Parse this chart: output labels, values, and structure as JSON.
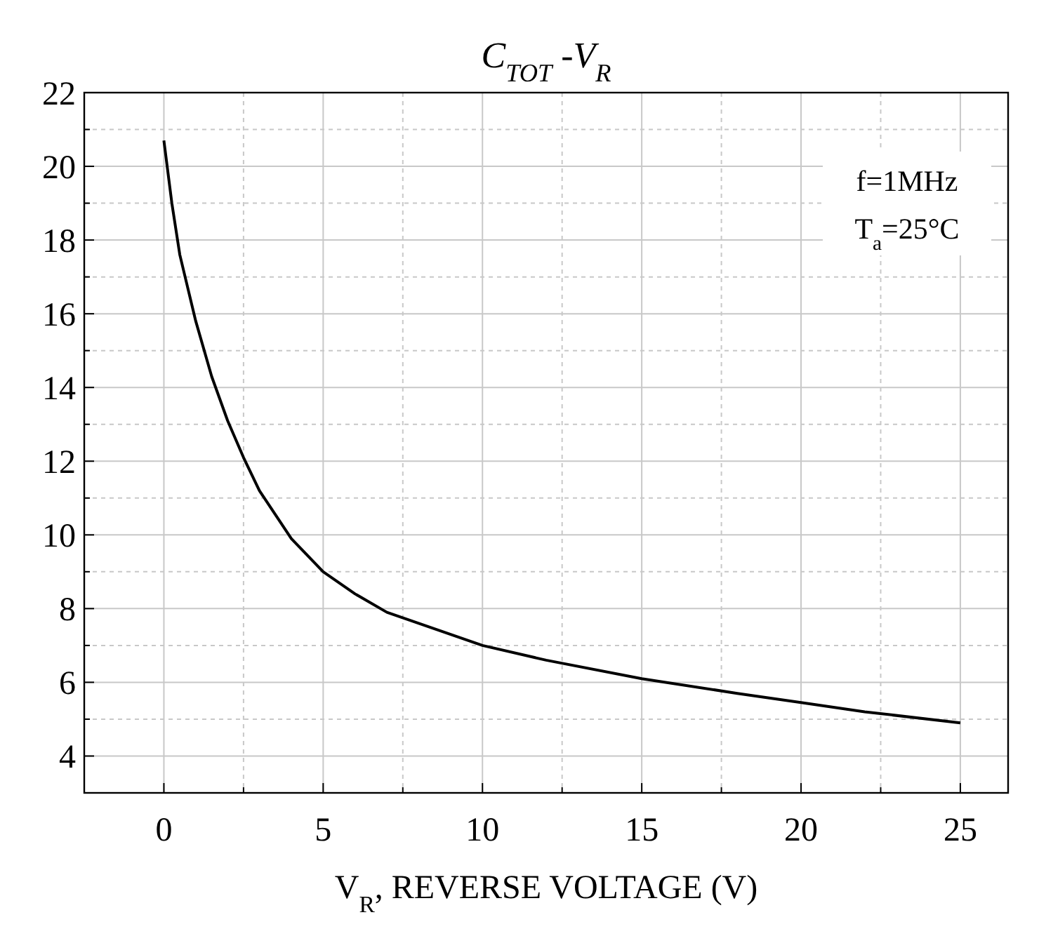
{
  "chart_data": {
    "type": "line",
    "title": "C$_{TOT}$ -V$_{R}$",
    "xlabel": "V$_{R}$, REVERSE VOLTAGE  (V)",
    "annotations": [
      "f=1MHz",
      "T$_{a}$=25°C"
    ],
    "x": [
      0,
      0.25,
      0.5,
      1,
      1.5,
      2,
      2.5,
      3,
      4,
      5,
      6,
      7,
      8,
      10,
      12,
      15,
      18,
      20,
      22,
      25
    ],
    "series": [
      {
        "color": "#000000",
        "values": [
          20.7,
          19,
          17.6,
          15.8,
          14.3,
          13.1,
          12.1,
          11.2,
          9.9,
          9.0,
          8.4,
          7.9,
          7.6,
          7.0,
          6.6,
          6.1,
          5.7,
          5.45,
          5.2,
          4.9
        ]
      }
    ],
    "xlim": [
      -2.5,
      26.5
    ],
    "xticks": [
      0,
      {
        "value": 2.5,
        "label": null
      },
      5,
      {
        "value": 7.5,
        "label": null
      },
      10,
      {
        "value": 12.5,
        "label": null
      },
      15,
      {
        "value": 17.5,
        "label": null
      },
      20,
      {
        "value": 22.5,
        "label": null
      },
      25
    ],
    "ylim": [
      3,
      22
    ],
    "yticks": [
      4,
      {
        "value": 5,
        "label": null
      },
      6,
      {
        "value": 7,
        "label": null
      },
      8,
      {
        "value": 9,
        "label": null
      },
      10,
      {
        "value": 11,
        "label": null
      },
      12,
      {
        "value": 13,
        "label": null
      },
      14,
      {
        "value": 15,
        "label": null
      },
      16,
      {
        "value": 17,
        "label": null
      },
      18,
      {
        "value": 19,
        "label": null
      },
      20,
      {
        "value": 21,
        "label": null
      },
      22
    ],
    "grid": true,
    "marker": "none",
    "line_style": "solid"
  }
}
